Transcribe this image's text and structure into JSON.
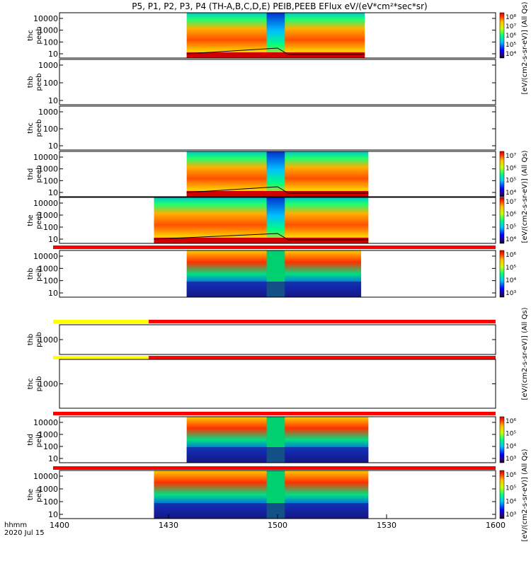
{
  "title": "P5, P1, P2, P3, P4 (TH-A,B,C,D,E) PEIB,PEEB EFlux eV/(eV*cm²*sec*sr)",
  "time_axis": {
    "unit_label": "hhmm",
    "date_label": "2020 Jul 15",
    "tick_labels": [
      "1400",
      "1430",
      "1500",
      "1530",
      "1600"
    ]
  },
  "colorbar_labels": {
    "peeb_top": "[eV/(cm2-s-sr-eV)] (All Qs)",
    "peeb_mid": "[eV/(cm2-s-sr-eV)] (All Qs)",
    "peib_mid": "[eV/(cm2-s-sr-eV)] (All Qs)",
    "peib_low": "[eV/(cm2-s-sr-eV)] (All Qs)"
  },
  "chart_data": {
    "type": "heatmap",
    "x_range": [
      "14:00",
      "16:00"
    ],
    "x_ticks": [
      "1400",
      "1430",
      "1500",
      "1530",
      "1600"
    ],
    "y_scale": "log",
    "colors": {
      "low": "#1010a0",
      "mid": "#00c8c8",
      "high": "#ff2a00",
      "sat": "#d00000",
      "qual_good": "#ff0000",
      "qual_bad": "#ffff00"
    },
    "panels": [
      {
        "probe": "thc",
        "label": [
          "thc",
          "peeb"
        ],
        "y_ticks": [
          "10000",
          "1000",
          "100",
          "10"
        ],
        "y_ticks_vals": [
          10000,
          1000,
          100,
          10
        ],
        "colorbar": "peeb_top",
        "cbar_ticks": [
          "10⁸",
          "10⁷",
          "10⁶",
          "10⁵",
          "10⁴"
        ],
        "data_range": [
          "14:35",
          "15:24"
        ]
      },
      {
        "probe": "thb",
        "label": [
          "thb",
          "peeb"
        ],
        "y_ticks": [
          "1000",
          "100",
          "10"
        ],
        "y_ticks_vals": [
          1000,
          100,
          10
        ],
        "data_range": null
      },
      {
        "probe": "thc",
        "label": [
          "thc",
          "peeb"
        ],
        "y_ticks": [
          "1000",
          "100",
          "10"
        ],
        "y_ticks_vals": [
          1000,
          100,
          10
        ],
        "data_range": null
      },
      {
        "probe": "thd",
        "label": [
          "thd",
          "peeb"
        ],
        "y_ticks": [
          "10000",
          "1000",
          "100",
          "10"
        ],
        "y_ticks_vals": [
          10000,
          1000,
          100,
          10
        ],
        "colorbar": "peeb_mid",
        "cbar_ticks": [
          "10⁷",
          "10⁶",
          "10⁵",
          "10⁴"
        ],
        "data_range": [
          "14:35",
          "15:25"
        ]
      },
      {
        "probe": "the",
        "label": [
          "the",
          "peeb"
        ],
        "y_ticks": [
          "10000",
          "1000",
          "100",
          "10"
        ],
        "y_ticks_vals": [
          10000,
          1000,
          100,
          10
        ],
        "colorbar": "peeb_mid",
        "cbar_ticks": [
          "10⁷",
          "10⁶",
          "10⁵",
          "10⁴"
        ],
        "data_range": [
          "14:26",
          "15:25"
        ]
      },
      {
        "probe": "thb",
        "label": [
          "thb",
          "peib"
        ],
        "y_ticks": [
          "10000",
          "1000",
          "100",
          "10"
        ],
        "y_ticks_vals": [
          10000,
          1000,
          100,
          10
        ],
        "colorbar": "peib_mid",
        "cbar_ticks": [
          "10⁶",
          "10⁵",
          "10⁴",
          "10³"
        ],
        "data_range": [
          "14:35",
          "15:23"
        ]
      },
      {
        "probe": "thb",
        "label": [
          "thb",
          "peib"
        ],
        "y_ticks": [
          "1000"
        ],
        "y_ticks_vals": [
          1000
        ],
        "data_range": null
      },
      {
        "probe": "thc",
        "label": [
          "thc",
          "peib"
        ],
        "y_ticks": [
          "1000"
        ],
        "y_ticks_vals": [
          1000
        ],
        "data_range": null
      },
      {
        "probe": "thd",
        "label": [
          "thd",
          "peib"
        ],
        "y_ticks": [
          "10000",
          "1000",
          "100",
          "10"
        ],
        "y_ticks_vals": [
          10000,
          1000,
          100,
          10
        ],
        "colorbar": "peib_low",
        "cbar_ticks": [
          "10⁶",
          "10⁵",
          "10⁴",
          "10³"
        ],
        "data_range": [
          "14:35",
          "15:25"
        ]
      },
      {
        "probe": "the",
        "label": [
          "the",
          "peib"
        ],
        "y_ticks": [
          "10000",
          "1000",
          "100",
          "10"
        ],
        "y_ticks_vals": [
          10000,
          1000,
          100,
          10
        ],
        "colorbar": "peib_low",
        "cbar_ticks": [
          "10⁶",
          "10⁵",
          "10⁴",
          "10³"
        ],
        "data_range": [
          "14:26",
          "15:25"
        ]
      }
    ]
  }
}
